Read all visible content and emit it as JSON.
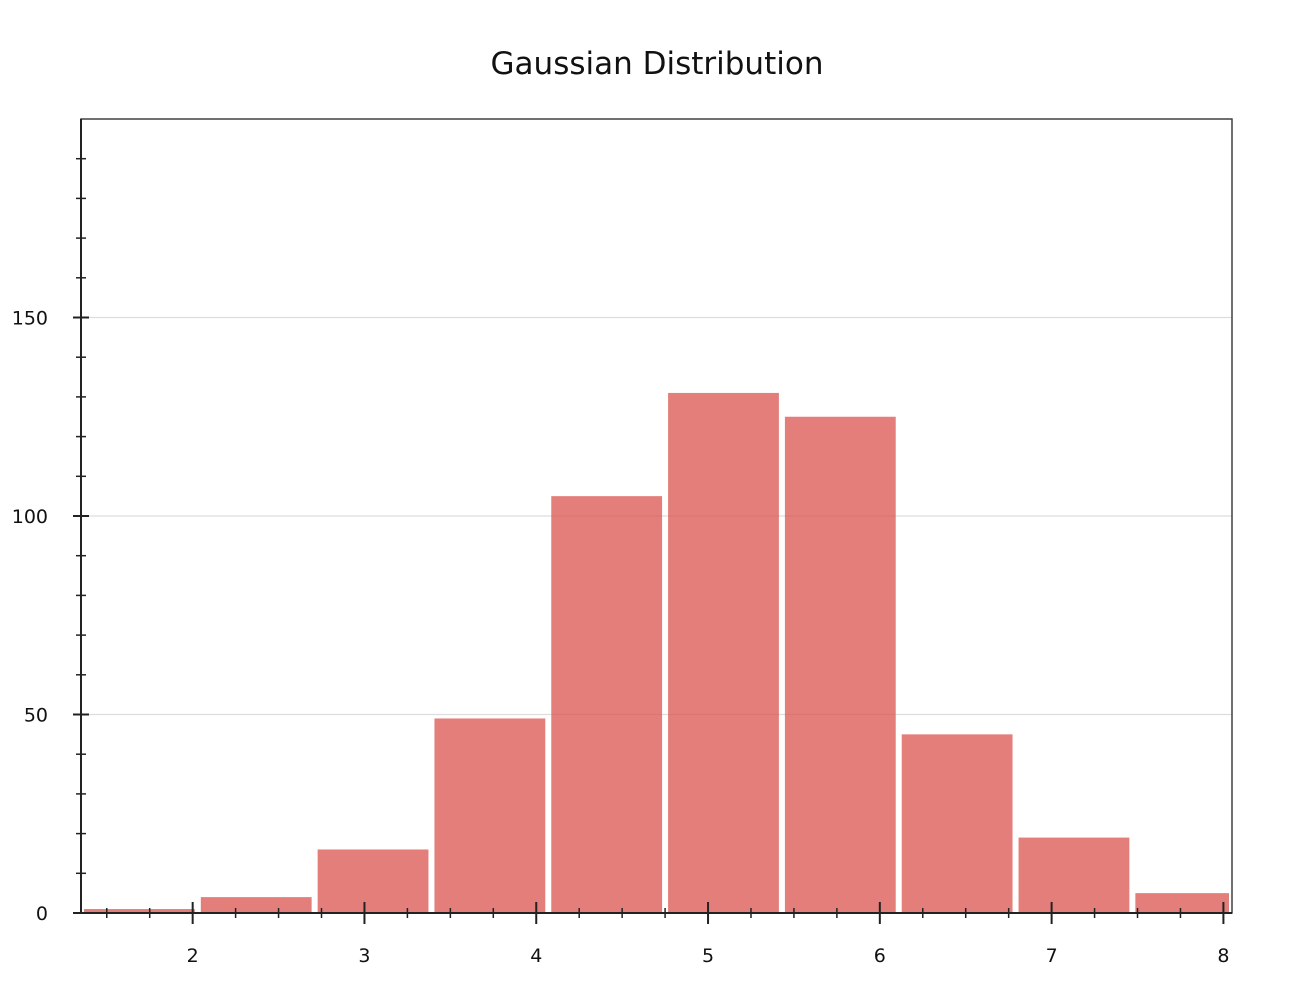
{
  "chart_data": {
    "type": "bar",
    "title": "Gaussian Distribution",
    "xlabel": "",
    "ylabel": "",
    "bin_edges": [
      1.35,
      2.03,
      2.71,
      3.39,
      4.07,
      4.75,
      5.43,
      6.11,
      6.79,
      7.47,
      8.15
    ],
    "values": [
      1,
      4,
      16,
      49,
      105,
      131,
      125,
      45,
      19,
      5
    ],
    "xlim": [
      1.35,
      8.05
    ],
    "ylim": [
      0,
      200
    ],
    "x_ticks": [
      2,
      3,
      4,
      5,
      6,
      7,
      8
    ],
    "x_tick_labels": [
      "2",
      "3",
      "4",
      "5",
      "6",
      "7",
      "8"
    ],
    "x_minor_step": 0.25,
    "y_ticks": [
      0,
      50,
      100,
      150
    ],
    "y_tick_labels": [
      "0",
      "50",
      "100",
      "150"
    ],
    "y_minor_step": 10,
    "grid": "horizontal",
    "colors": {
      "bar": "#d9534f",
      "grid": "#dddddd",
      "axis": "#333333"
    }
  }
}
